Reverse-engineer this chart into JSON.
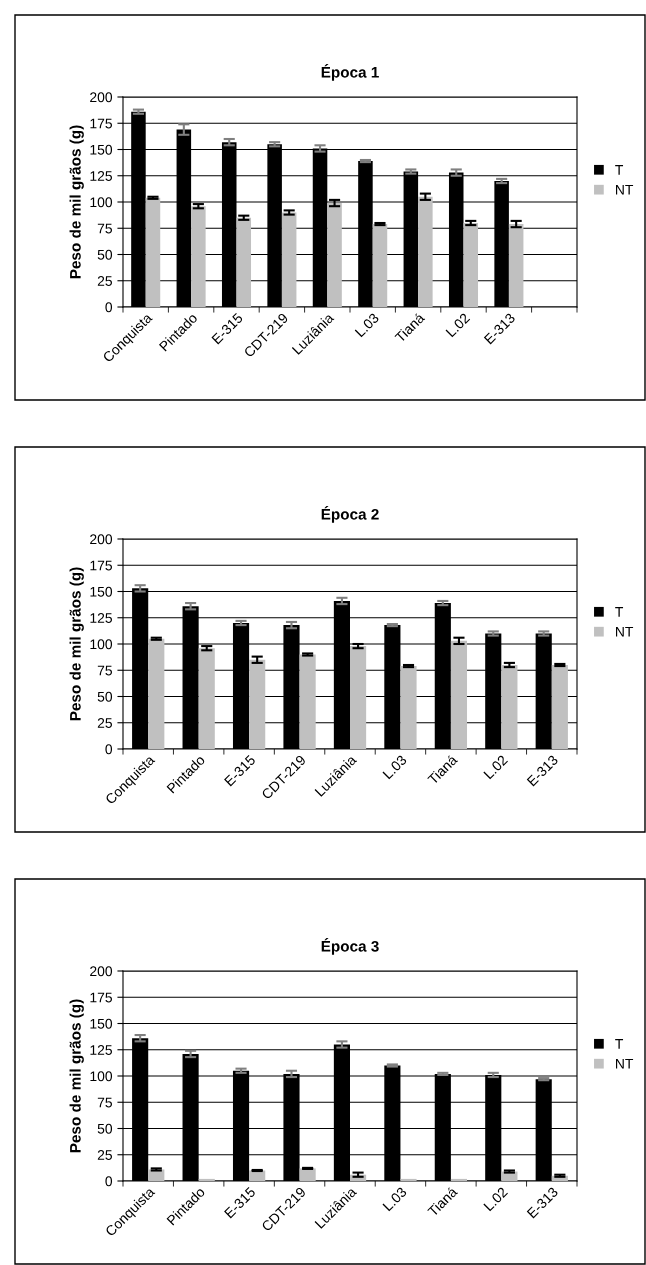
{
  "chart_data": [
    {
      "type": "bar",
      "title": "Época 1",
      "ylabel": "Peso de mil grãos (g)",
      "categories": [
        "Conquista",
        "Pintado",
        "E-315",
        "CDT-219",
        "Luziânia",
        "L.03",
        "Tianá",
        "L.02",
        "E-313",
        null
      ],
      "series": [
        {
          "name": "T",
          "color": "#000000",
          "values": [
            186,
            169,
            157,
            155,
            151,
            139,
            129,
            128,
            120,
            null
          ],
          "errors": [
            2,
            5,
            3,
            2,
            3,
            1,
            2,
            3,
            2,
            null
          ]
        },
        {
          "name": "NT",
          "color": "#c0c0c0",
          "values": [
            104,
            96,
            85,
            90,
            99,
            79,
            105,
            80,
            79,
            null
          ],
          "errors": [
            1,
            2,
            2,
            2,
            3,
            1,
            3,
            2,
            3,
            null
          ]
        }
      ],
      "ylim": [
        0,
        200
      ],
      "yticks": [
        0,
        25,
        50,
        75,
        100,
        125,
        150,
        175,
        200
      ],
      "grid": "y",
      "legend": "right"
    },
    {
      "type": "bar",
      "title": "Época 2",
      "ylabel": "Peso de mil grãos (g)",
      "categories": [
        "Conquista",
        "Pintado",
        "E-315",
        "CDT-219",
        "Luziânia",
        "L.03",
        "Tianá",
        "L.02",
        "E-313"
      ],
      "series": [
        {
          "name": "T",
          "color": "#000000",
          "values": [
            153,
            136,
            120,
            118,
            141,
            118,
            139,
            110,
            110
          ],
          "errors": [
            3,
            3,
            2,
            3,
            3,
            1,
            2,
            2,
            2
          ]
        },
        {
          "name": "NT",
          "color": "#c0c0c0",
          "values": [
            105,
            96,
            85,
            90,
            98,
            79,
            103,
            80,
            80
          ],
          "errors": [
            1,
            2,
            3,
            1,
            2,
            1,
            3,
            2,
            1
          ]
        }
      ],
      "ylim": [
        0,
        200
      ],
      "yticks": [
        0,
        25,
        50,
        75,
        100,
        125,
        150,
        175,
        200
      ],
      "grid": "y",
      "legend": "right"
    },
    {
      "type": "bar",
      "title": "Época 3",
      "ylabel": "Peso de mil grãos (g)",
      "categories": [
        "Conquista",
        "Pintado",
        "E-315",
        "CDT-219",
        "Luziânia",
        "L.03",
        "Tianá",
        "L.02",
        "E-313"
      ],
      "series": [
        {
          "name": "T",
          "color": "#000000",
          "values": [
            136,
            121,
            105,
            102,
            130,
            110,
            102,
            101,
            97
          ],
          "errors": [
            3,
            3,
            2,
            3,
            3,
            1,
            1,
            2,
            1
          ]
        },
        {
          "name": "NT",
          "color": "#c0c0c0",
          "values": [
            11,
            2,
            10,
            12,
            6,
            2,
            2,
            9,
            5
          ],
          "errors": [
            1,
            null,
            0.5,
            0.5,
            2,
            null,
            null,
            1,
            1
          ]
        }
      ],
      "ylim": [
        0,
        200
      ],
      "yticks": [
        0,
        25,
        50,
        75,
        100,
        125,
        150,
        175,
        200
      ],
      "grid": "y",
      "legend": "right"
    }
  ]
}
